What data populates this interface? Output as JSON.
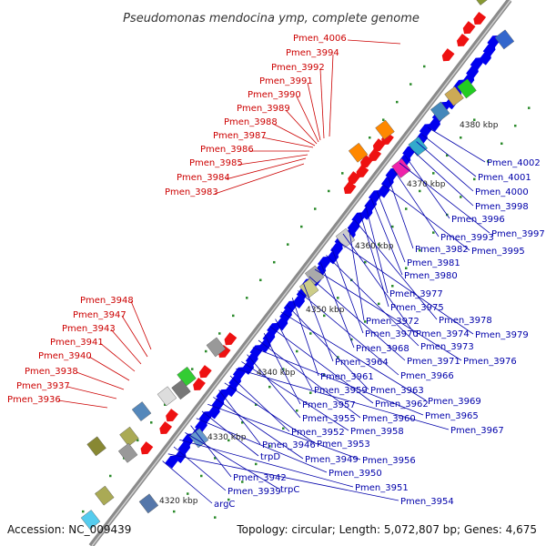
{
  "title": "Pseudomonas mendocina ymp, complete genome",
  "footer": {
    "accession": "Accession: NC_009439",
    "topology": "Topology: circular; Length: 5,072,807 bp; Genes: 4,675"
  },
  "colors": {
    "forward": "#ee1111",
    "reverse": "#0000ee",
    "red_label": "#cc0000",
    "blue_label": "#0000aa",
    "backbone": "#8a8a8a",
    "dots": "#2a8a2a"
  },
  "kbp_ticks": [
    "4320 kbp",
    "4330 kbp",
    "4340 kbp",
    "4350 kbp",
    "4360 kbp",
    "4370 kbp",
    "4380 kbp"
  ],
  "labels_red": [
    "Pmen_4006",
    "Pmen_3994",
    "Pmen_3992",
    "Pmen_3991",
    "Pmen_3990",
    "Pmen_3989",
    "Pmen_3988",
    "Pmen_3987",
    "Pmen_3986",
    "Pmen_3985",
    "Pmen_3984",
    "Pmen_3983",
    "Pmen_3948",
    "Pmen_3947",
    "Pmen_3943",
    "Pmen_3941",
    "Pmen_3940",
    "Pmen_3938",
    "Pmen_3937",
    "Pmen_3936"
  ],
  "labels_blue": [
    "Pmen_4002",
    "Pmen_4001",
    "Pmen_4000",
    "Pmen_3998",
    "Pmen_3996",
    "Pmen_3997",
    "Pmen_3993",
    "Pmen_3982",
    "Pmen_3995",
    "Pmen_3981",
    "Pmen_3980",
    "Pmen_3977",
    "Pmen_3975",
    "Pmen_3978",
    "Pmen_3972",
    "Pmen_3974",
    "Pmen_3979",
    "Pmen_3970",
    "Pmen_3973",
    "Pmen_3968",
    "Pmen_3976",
    "Pmen_3971",
    "Pmen_3964",
    "Pmen_3966",
    "Pmen_3961",
    "Pmen_3963",
    "Pmen_3969",
    "Pmen_3959",
    "Pmen_3962",
    "Pmen_3957",
    "Pmen_3960",
    "Pmen_3965",
    "Pmen_3955",
    "Pmen_3958",
    "Pmen_3967",
    "Pmen_3952",
    "Pmen_3953",
    "Pmen_3946",
    "Pmen_3949",
    "Pmen_3956",
    "trpD",
    "Pmen_3950",
    "Pmen_3942",
    "trpC",
    "Pmen_3951",
    "Pmen_3939",
    "Pmen_3954",
    "argC"
  ]
}
